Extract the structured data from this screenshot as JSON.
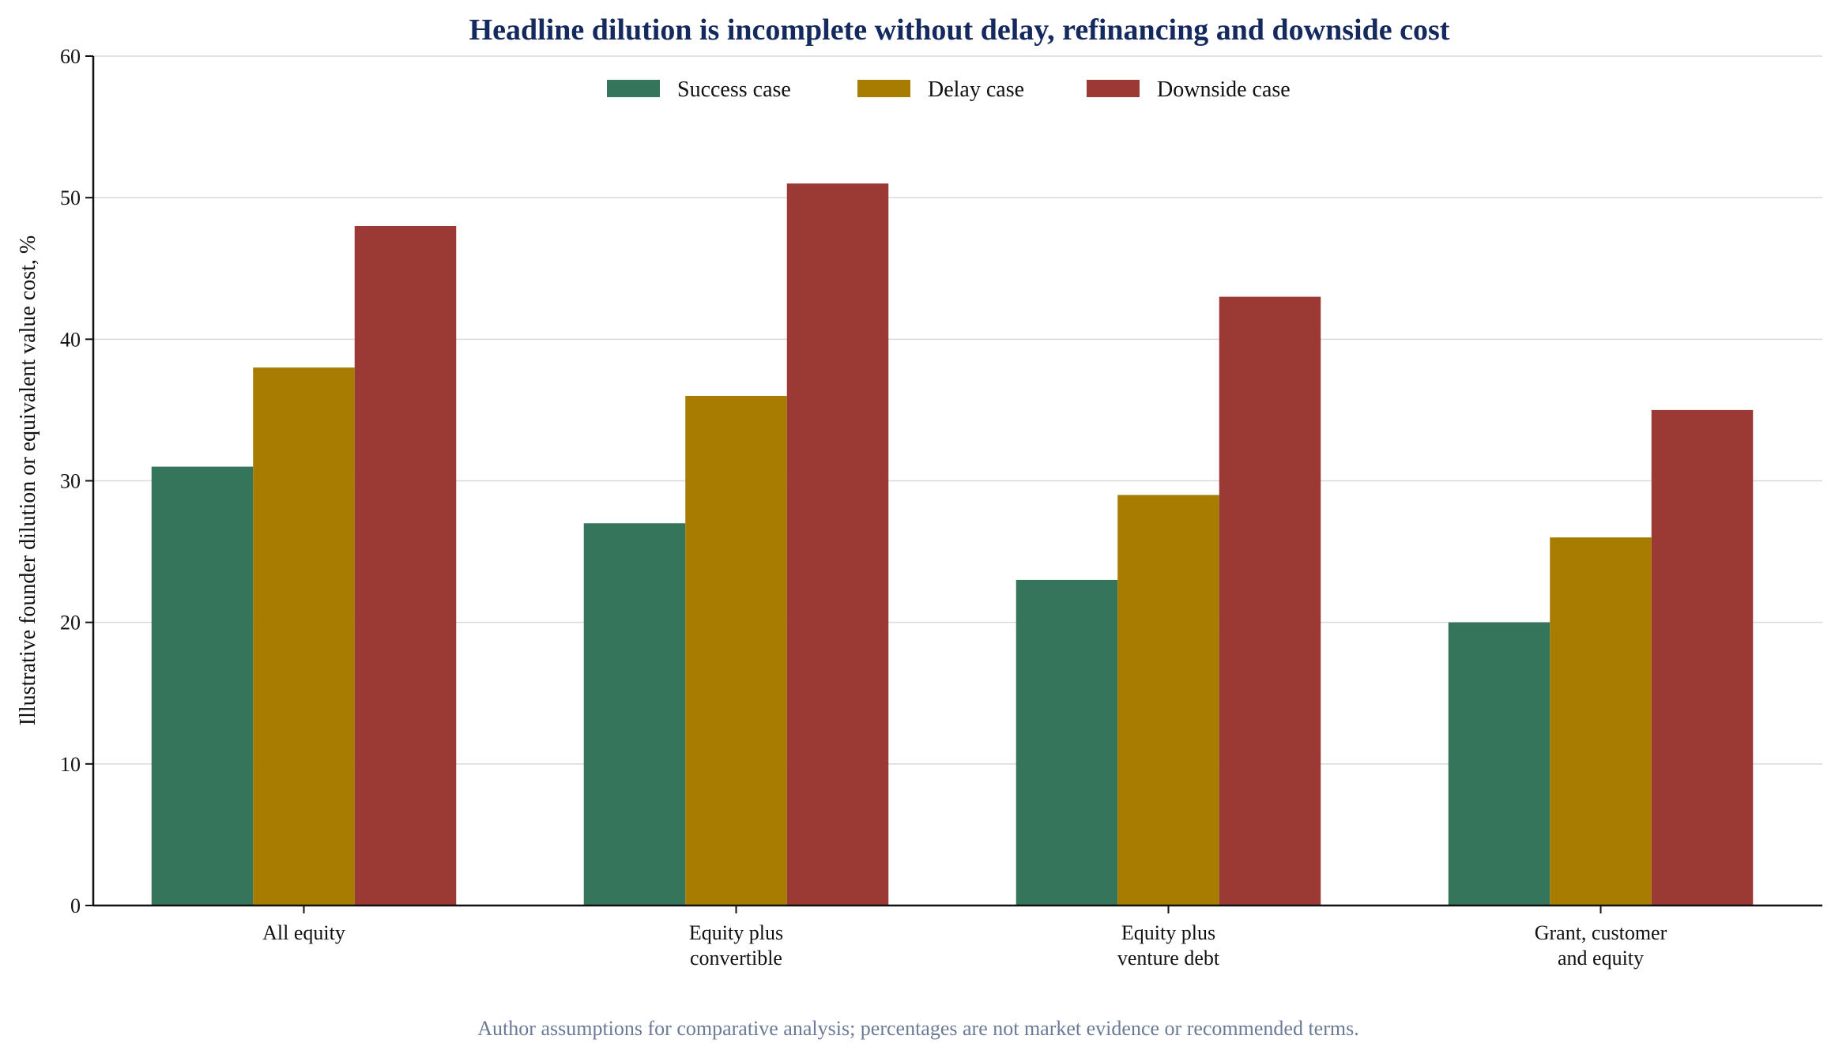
{
  "chart_data": {
    "type": "bar",
    "title": "Headline dilution is incomplete without delay, refinancing and downside cost",
    "ylabel": "Illustrative founder dilution or equivalent value cost, %",
    "xlabel": "",
    "ylim": [
      0,
      60
    ],
    "yticks": [
      "0",
      "10",
      "20",
      "30",
      "40",
      "50",
      "60"
    ],
    "categories": [
      [
        "All equity"
      ],
      [
        "Equity plus",
        "convertible"
      ],
      [
        "Equity plus",
        "venture debt"
      ],
      [
        "Grant, customer",
        "and equity"
      ]
    ],
    "series": [
      {
        "name": "Success case",
        "color": "#35755b",
        "values": [
          31,
          27,
          23,
          20
        ]
      },
      {
        "name": "Delay case",
        "color": "#a77c00",
        "values": [
          38,
          36,
          29,
          26
        ]
      },
      {
        "name": "Downside case",
        "color": "#9b3935",
        "values": [
          48,
          51,
          43,
          35
        ]
      }
    ],
    "grid": true,
    "legend_position": "top-center",
    "note": "Author assumptions for comparative analysis; percentages are not market evidence or recommended terms."
  }
}
